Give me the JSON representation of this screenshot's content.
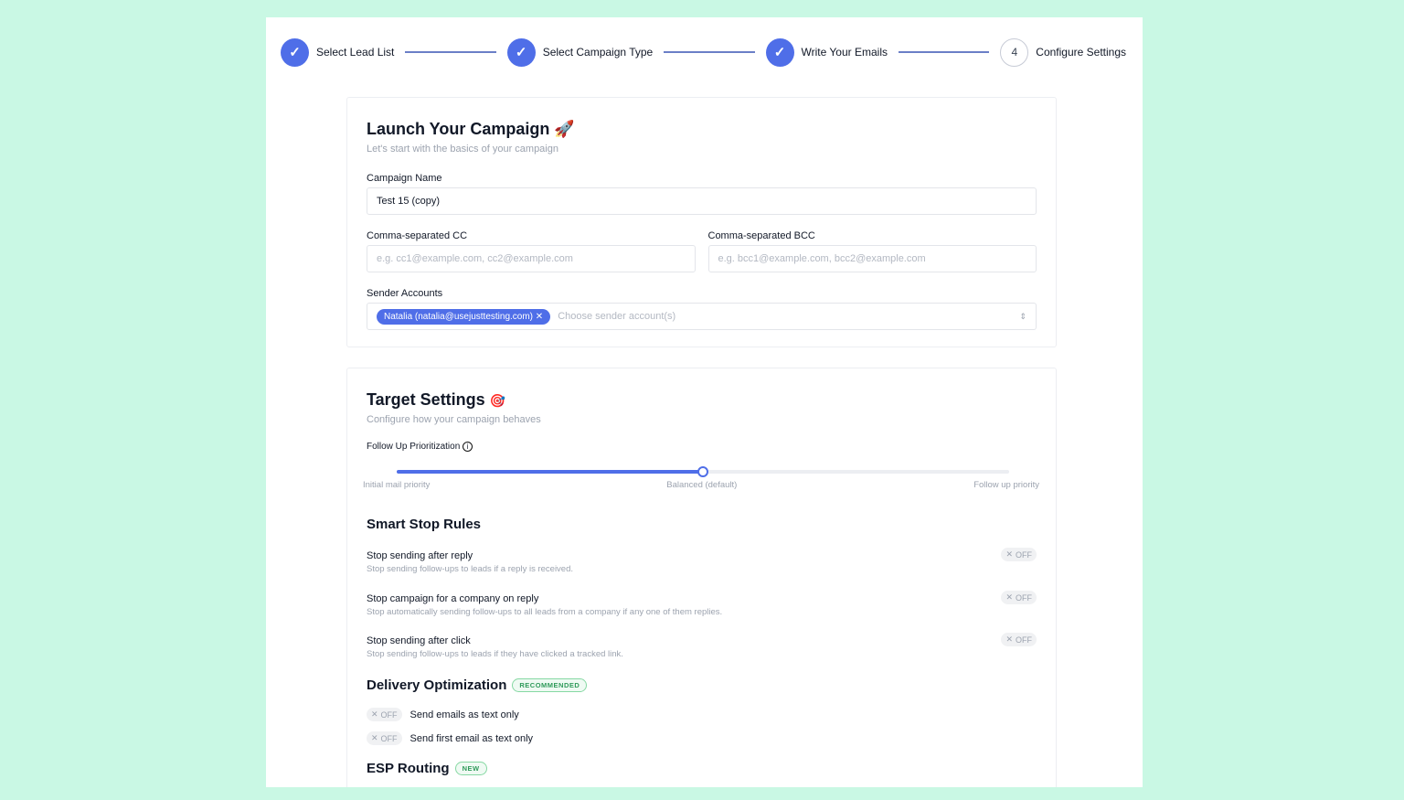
{
  "stepper": {
    "steps": [
      {
        "label": "Select Lead List",
        "status": "done",
        "icon": "check-icon"
      },
      {
        "label": "Select Campaign Type",
        "status": "done",
        "icon": "check-icon"
      },
      {
        "label": "Write Your Emails",
        "status": "done",
        "icon": "check-icon"
      },
      {
        "label": "Configure Settings",
        "status": "current",
        "number": "4"
      }
    ]
  },
  "launch": {
    "title": "Launch Your Campaign",
    "emoji": "🚀",
    "subtitle": "Let's start with the basics of your campaign",
    "campaign_name_label": "Campaign Name",
    "campaign_name_value": "Test 15 (copy)",
    "cc_label": "Comma-separated CC",
    "cc_placeholder": "e.g. cc1@example.com, cc2@example.com",
    "bcc_label": "Comma-separated BCC",
    "bcc_placeholder": "e.g. bcc1@example.com, bcc2@example.com",
    "sender_label": "Sender Accounts",
    "sender_chip": "Natalia (natalia@usejusttesting.com)",
    "sender_placeholder": "Choose sender account(s)"
  },
  "target": {
    "title": "Target Settings",
    "emoji": "🎯",
    "subtitle": "Configure how your campaign behaves",
    "followup_label": "Follow Up Prioritization",
    "slider_value": 0.5,
    "slider_labels": [
      "Initial mail priority",
      "Balanced (default)",
      "Follow up priority"
    ]
  },
  "smart_stop": {
    "title": "Smart Stop Rules",
    "rules": [
      {
        "title": "Stop sending after reply",
        "desc": "Stop sending follow-ups to leads if a reply is received.",
        "state": "OFF"
      },
      {
        "title": "Stop campaign for a company on reply",
        "desc": "Stop automatically sending follow-ups to all leads from a company if any one of them replies.",
        "state": "OFF"
      },
      {
        "title": "Stop sending after click",
        "desc": "Stop sending follow-ups to leads if they have clicked a tracked link.",
        "state": "OFF"
      }
    ]
  },
  "delivery": {
    "title": "Delivery Optimization",
    "badge": "RECOMMENDED",
    "options": [
      {
        "label": "Send emails as text only",
        "state": "OFF"
      },
      {
        "label": "Send first email as text only",
        "state": "OFF"
      }
    ]
  },
  "esp": {
    "title": "ESP Routing",
    "badge": "NEW"
  },
  "colors": {
    "accent": "#4f6ee8",
    "background": "#c9f8e4",
    "badge_green": "#2f9a5a"
  }
}
